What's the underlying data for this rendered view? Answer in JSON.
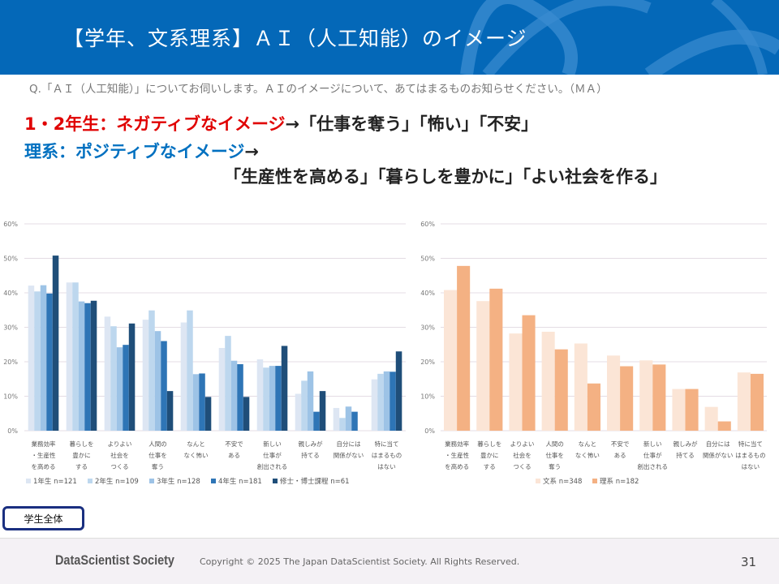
{
  "header": {
    "title": "【学年、文系理系】ＡＩ（人工知能）のイメージ"
  },
  "question": "Q.「ＡＩ（人工知能）」についてお伺いします。ＡＩのイメージについて、あてはまるものお知らせください。（ＭＡ）",
  "highlights": {
    "line1_colored": "1・2年生：ネガティブなイメージ",
    "line1_rest": "→「仕事を奪う」「怖い」「不安」",
    "line2_colored": "理系：ポジティブなイメージ",
    "line2_rest": "→",
    "line3": "「生産性を高める」「暮らしを豊かに」「よい社会を作る」"
  },
  "chart_data": [
    {
      "type": "bar",
      "title": "",
      "ylim": [
        0,
        60
      ],
      "yticks": [
        "0%",
        "10%",
        "20%",
        "30%",
        "40%",
        "50%",
        "60%"
      ],
      "categories": [
        [
          "業務効率",
          "・生産性",
          "を高める"
        ],
        [
          "暮らしを",
          "豊かに",
          "する"
        ],
        [
          "よりよい",
          "社会を",
          "つくる"
        ],
        [
          "人間の",
          "仕事を",
          "奪う"
        ],
        [
          "なんと",
          "なく怖い"
        ],
        [
          "不安で",
          "ある"
        ],
        [
          "新しい",
          "仕事が",
          "創出される"
        ],
        [
          "親しみが",
          "持てる"
        ],
        [
          "自分には",
          "関係がない"
        ],
        [
          "特に当て",
          "はまるもの",
          "はない"
        ]
      ],
      "series": [
        {
          "name": "1年生 n=121",
          "color": "#dde6f3",
          "values": [
            42.1,
            43.0,
            33.1,
            32.2,
            31.4,
            24.0,
            20.7,
            10.7,
            6.6,
            14.9
          ]
        },
        {
          "name": "2年生 n=109",
          "color": "#bdd7ee",
          "values": [
            40.4,
            43.0,
            30.3,
            34.9,
            34.9,
            27.5,
            18.3,
            14.5,
            3.7,
            16.5
          ]
        },
        {
          "name": "3年生 n=128",
          "color": "#9dc3e6",
          "values": [
            42.2,
            37.5,
            24.2,
            28.9,
            16.4,
            20.3,
            18.8,
            17.2,
            7.0,
            17.2
          ]
        },
        {
          "name": "4年生 n=181",
          "color": "#2e75b6",
          "values": [
            39.8,
            37.0,
            24.9,
            26.0,
            16.6,
            19.3,
            18.8,
            5.5,
            5.5,
            17.1
          ]
        },
        {
          "name": "修士・博士課程 n=61",
          "color": "#1f4e79",
          "values": [
            50.8,
            37.7,
            31.1,
            11.5,
            9.8,
            9.8,
            24.6,
            11.5,
            0,
            23.0
          ]
        }
      ],
      "legend": "bottom"
    },
    {
      "type": "bar",
      "title": "",
      "ylim": [
        0,
        60
      ],
      "yticks": [
        "0%",
        "10%",
        "20%",
        "30%",
        "40%",
        "50%",
        "60%"
      ],
      "categories": [
        [
          "業務効率",
          "・生産性",
          "を高める"
        ],
        [
          "暮らしを",
          "豊かに",
          "する"
        ],
        [
          "よりよい",
          "社会を",
          "つくる"
        ],
        [
          "人間の",
          "仕事を",
          "奪う"
        ],
        [
          "なんと",
          "なく怖い"
        ],
        [
          "不安で",
          "ある"
        ],
        [
          "新しい",
          "仕事が",
          "創出される"
        ],
        [
          "親しみが",
          "持てる"
        ],
        [
          "自分には",
          "関係がない"
        ],
        [
          "特に当て",
          "はまるもの",
          "はない"
        ]
      ],
      "series": [
        {
          "name": "文系 n=348",
          "color": "#fbe5d6",
          "values": [
            40.8,
            37.6,
            28.2,
            28.7,
            25.3,
            21.8,
            20.4,
            12.1,
            6.9,
            16.9
          ]
        },
        {
          "name": "理系 n=182",
          "color": "#f4b183",
          "values": [
            47.8,
            41.2,
            33.5,
            23.6,
            13.7,
            18.7,
            19.2,
            12.1,
            2.7,
            16.5
          ]
        }
      ],
      "legend": "bottom"
    }
  ],
  "scope_button": "学生全体",
  "footer": {
    "logo": "DataScientist Society",
    "copyright": "Copyright © 2025  The Japan DataScientist Society. All Rights Reserved.",
    "page_number": "31"
  }
}
